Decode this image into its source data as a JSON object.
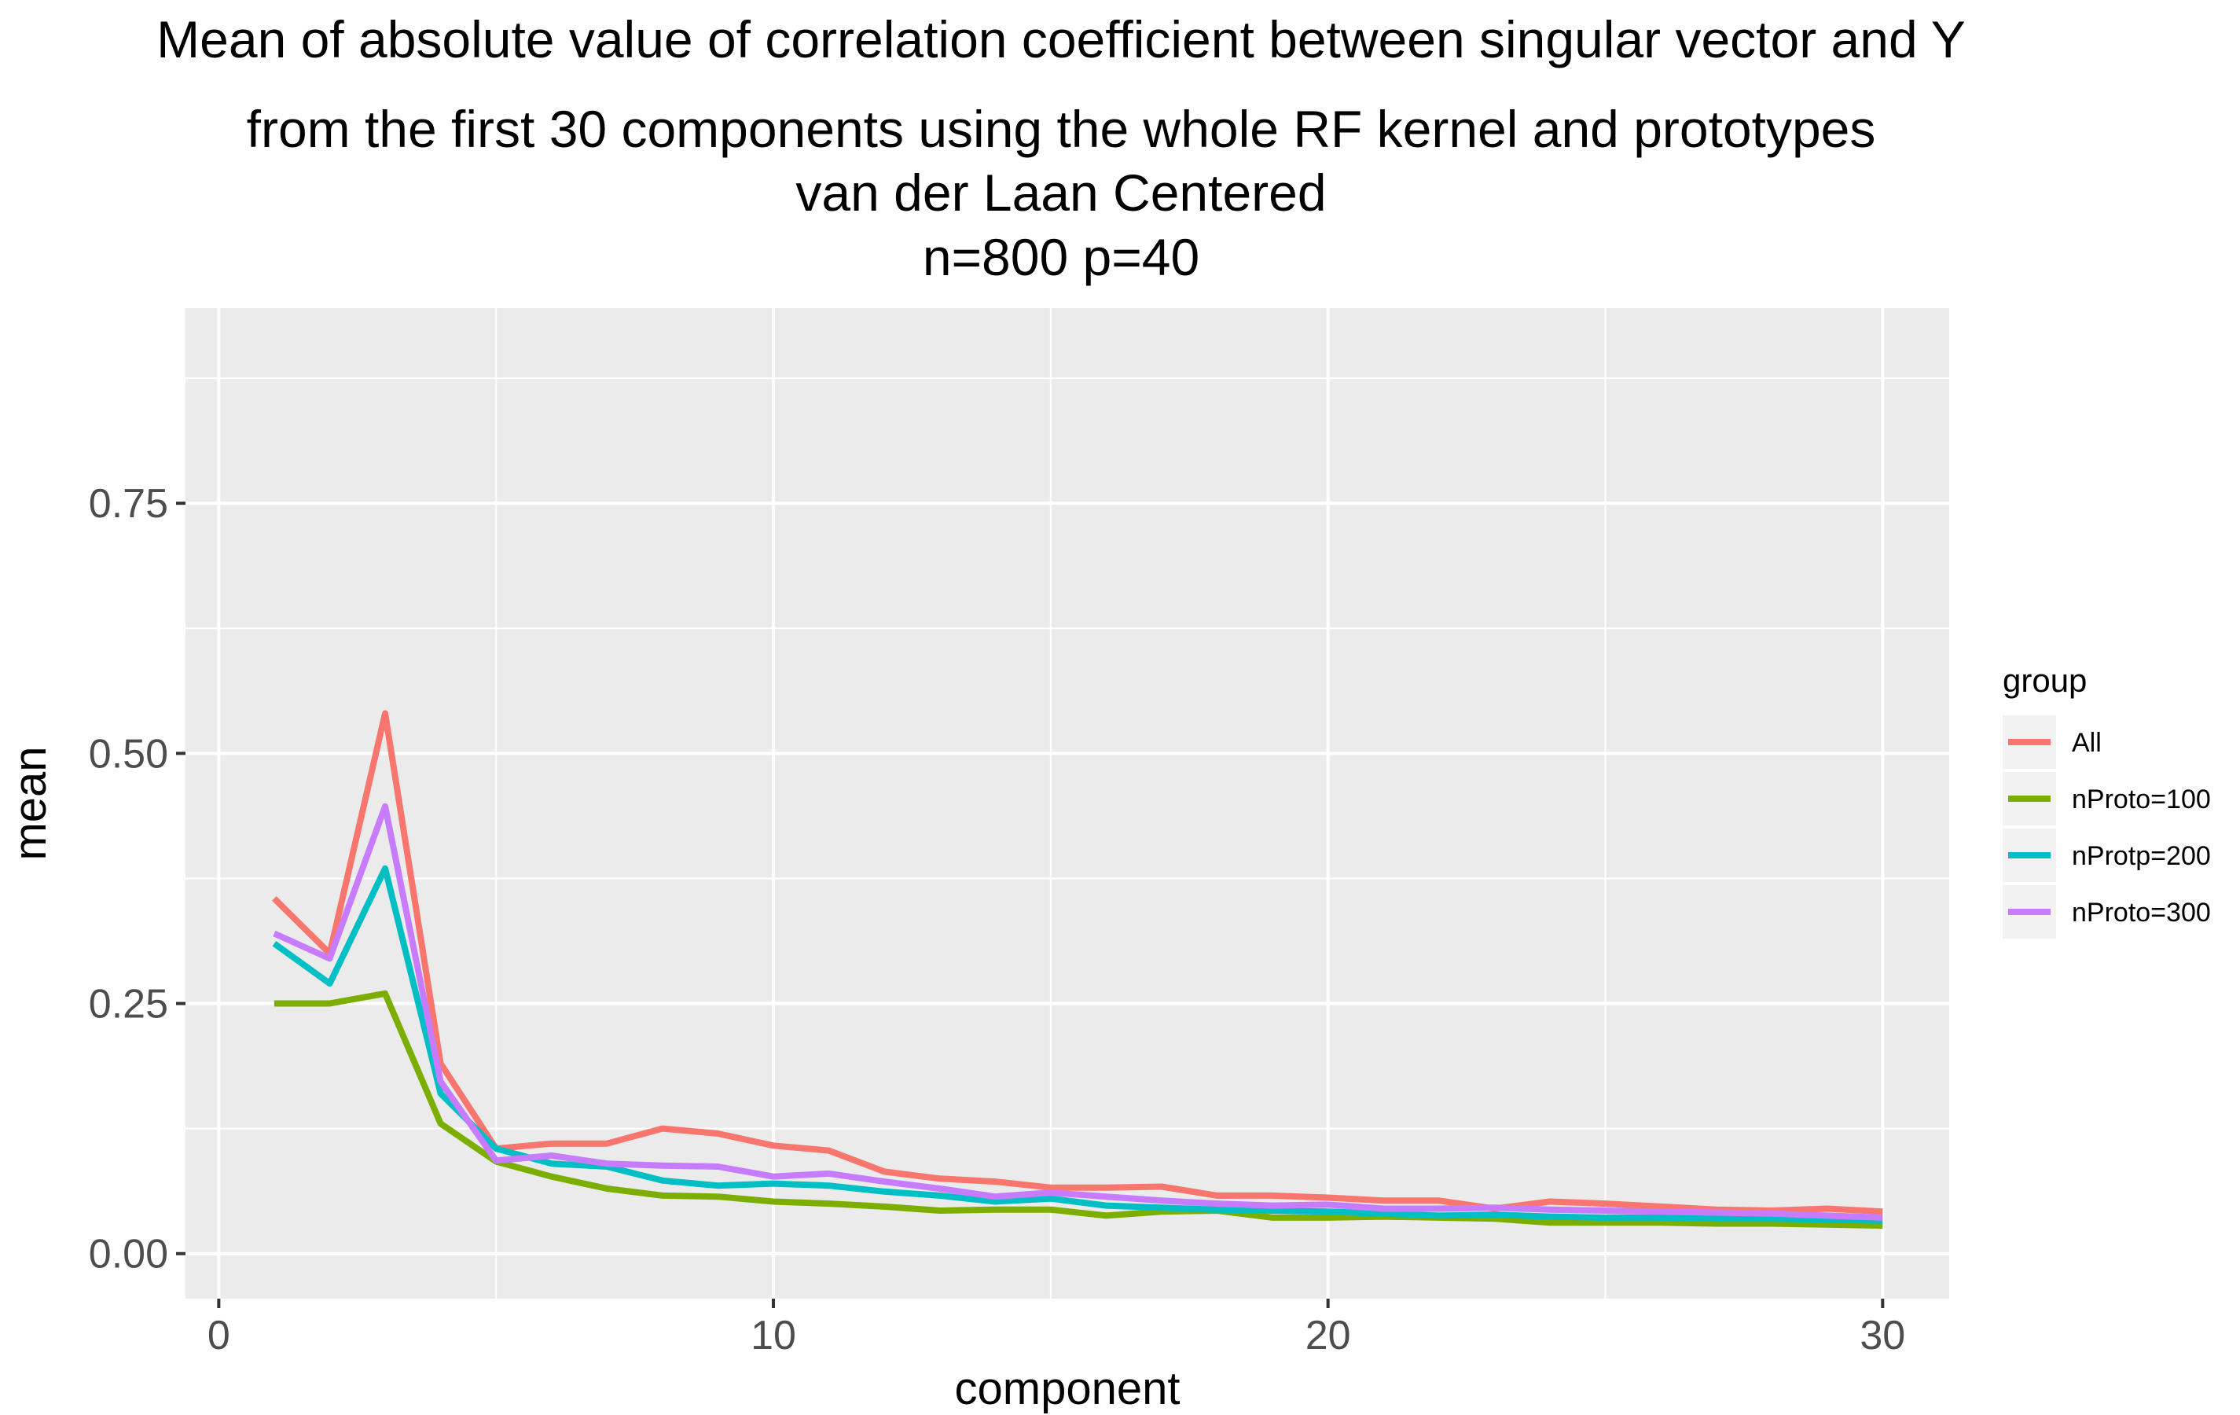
{
  "chart_data": {
    "type": "line",
    "title": [
      "Mean of absolute value of correlation coefficient between singular vector and Y",
      "from the first 30 components using the whole RF kernel and prototypes",
      "van der Laan Centered",
      "n=800 p=40"
    ],
    "xlabel": "component",
    "ylabel": "mean",
    "xlim": [
      -0.6,
      31.2
    ],
    "ylim": [
      -0.045,
      0.945
    ],
    "x_ticks": [
      0,
      10,
      20,
      30
    ],
    "x_tick_labels": [
      "0",
      "10",
      "20",
      "30"
    ],
    "x_minor_ticks": [
      5,
      15,
      25
    ],
    "y_ticks": [
      0,
      0.25,
      0.5,
      0.75
    ],
    "y_tick_labels": [
      "0.00",
      "0.25",
      "0.50",
      "0.75"
    ],
    "y_minor_ticks": [
      0.125,
      0.375,
      0.625,
      0.875
    ],
    "grid": true,
    "panel_background": "#EBEBEB",
    "legend_title": "group",
    "legend_position": "right",
    "x": [
      1,
      2,
      3,
      4,
      5,
      6,
      7,
      8,
      9,
      10,
      11,
      12,
      13,
      14,
      15,
      16,
      17,
      18,
      19,
      20,
      21,
      22,
      23,
      24,
      25,
      26,
      27,
      28,
      29,
      30
    ],
    "series": [
      {
        "name": "All",
        "color": "#F8766D",
        "values": [
          0.355,
          0.3,
          0.54,
          0.19,
          0.105,
          0.11,
          0.11,
          0.125,
          0.12,
          0.108,
          0.103,
          0.082,
          0.075,
          0.072,
          0.066,
          0.066,
          0.067,
          0.058,
          0.058,
          0.056,
          0.053,
          0.053,
          0.045,
          0.052,
          0.05,
          0.047,
          0.044,
          0.043,
          0.045,
          0.042
        ]
      },
      {
        "name": "nProto=100",
        "color": "#7CAE00",
        "values": [
          0.25,
          0.25,
          0.26,
          0.13,
          0.092,
          0.077,
          0.065,
          0.058,
          0.057,
          0.052,
          0.05,
          0.047,
          0.043,
          0.044,
          0.044,
          0.038,
          0.042,
          0.043,
          0.036,
          0.036,
          0.037,
          0.036,
          0.035,
          0.031,
          0.031,
          0.031,
          0.03,
          0.03,
          0.029,
          0.028
        ]
      },
      {
        "name": "nProtp=200",
        "color": "#00BFC4",
        "values": [
          0.31,
          0.27,
          0.385,
          0.16,
          0.105,
          0.09,
          0.087,
          0.073,
          0.068,
          0.07,
          0.068,
          0.062,
          0.058,
          0.052,
          0.055,
          0.048,
          0.046,
          0.044,
          0.043,
          0.042,
          0.04,
          0.038,
          0.039,
          0.037,
          0.036,
          0.036,
          0.035,
          0.035,
          0.034,
          0.033
        ]
      },
      {
        "name": "nProto=300",
        "color": "#C77CFF",
        "values": [
          0.32,
          0.295,
          0.447,
          0.172,
          0.093,
          0.098,
          0.09,
          0.088,
          0.087,
          0.077,
          0.08,
          0.072,
          0.065,
          0.057,
          0.061,
          0.057,
          0.053,
          0.05,
          0.048,
          0.049,
          0.045,
          0.045,
          0.046,
          0.044,
          0.043,
          0.042,
          0.041,
          0.04,
          0.038,
          0.036
        ]
      }
    ]
  }
}
